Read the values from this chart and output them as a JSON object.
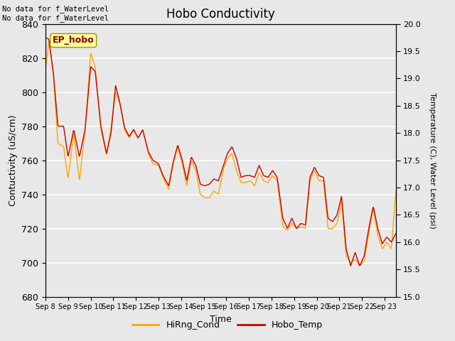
{
  "title": "Hobo Conductivity",
  "xlabel": "Time",
  "ylabel_left": "Contuctivity (uS/cm)",
  "ylabel_right": "Temperature (C), Water Level (psi)",
  "annotation_text": "No data for f_WaterLevel\nNo data for f_WaterLevel",
  "legend_label": "EP_hobo",
  "series1_label": "HiRng_Cond",
  "series2_label": "Hobo_Temp",
  "series1_color": "#FFA500",
  "series2_color": "#CC0000",
  "ylim_left": [
    680,
    840
  ],
  "ylim_right": [
    15.0,
    20.0
  ],
  "bg_color": "#E8E8E8",
  "x_tick_labels": [
    "Sep 8",
    "Sep 9",
    "Sep 10",
    "Sep 11",
    "Sep 12",
    "Sep 13",
    "Sep 14",
    "Sep 15",
    "Sep 16",
    "Sep 17",
    "Sep 18",
    "Sep 19",
    "Sep 20",
    "Sep 21",
    "Sep 22",
    "Sep 23"
  ],
  "key_t": [
    0,
    0.15,
    0.35,
    0.55,
    0.8,
    1.0,
    1.25,
    1.5,
    1.75,
    2.0,
    2.2,
    2.45,
    2.7,
    2.9,
    3.1,
    3.3,
    3.5,
    3.7,
    3.9,
    4.1,
    4.3,
    4.55,
    4.75,
    5.0,
    5.2,
    5.45,
    5.65,
    5.85,
    6.05,
    6.25,
    6.45,
    6.65,
    6.85,
    7.05,
    7.25,
    7.45,
    7.65,
    7.85,
    8.05,
    8.25,
    8.45,
    8.65,
    8.85,
    9.05,
    9.25,
    9.45,
    9.65,
    9.85,
    10.05,
    10.25,
    10.5,
    10.7,
    10.9,
    11.1,
    11.3,
    11.5,
    11.7,
    11.9,
    12.1,
    12.3,
    12.5,
    12.7,
    12.9,
    13.1,
    13.3,
    13.5,
    13.7,
    13.9,
    14.1,
    14.3,
    14.5,
    14.7,
    14.9,
    15.1,
    15.3,
    15.5
  ],
  "key_cond": [
    813,
    830,
    810,
    770,
    768,
    749,
    776,
    748,
    777,
    823,
    815,
    778,
    763,
    779,
    800,
    793,
    778,
    773,
    778,
    773,
    778,
    764,
    758,
    757,
    750,
    743,
    758,
    768,
    758,
    745,
    760,
    754,
    740,
    738,
    738,
    742,
    740,
    754,
    761,
    764,
    754,
    747,
    747,
    748,
    745,
    753,
    748,
    747,
    751,
    748,
    721,
    719,
    723,
    720,
    721,
    720,
    748,
    754,
    748,
    748,
    720,
    720,
    723,
    736,
    704,
    700,
    702,
    698,
    701,
    717,
    732,
    716,
    708,
    712,
    708,
    742
  ],
  "key_temp": [
    832,
    831,
    811,
    780,
    780,
    762,
    778,
    762,
    778,
    815,
    812,
    780,
    764,
    776,
    804,
    793,
    779,
    774,
    778,
    773,
    778,
    765,
    760,
    758,
    751,
    745,
    759,
    769,
    760,
    748,
    762,
    757,
    746,
    745,
    746,
    749,
    748,
    756,
    764,
    768,
    761,
    750,
    751,
    751,
    750,
    757,
    751,
    750,
    754,
    750,
    726,
    720,
    726,
    720,
    723,
    722,
    750,
    756,
    751,
    750,
    726,
    724,
    728,
    739,
    708,
    698,
    706,
    698,
    704,
    720,
    733,
    720,
    711,
    715,
    712,
    717
  ]
}
